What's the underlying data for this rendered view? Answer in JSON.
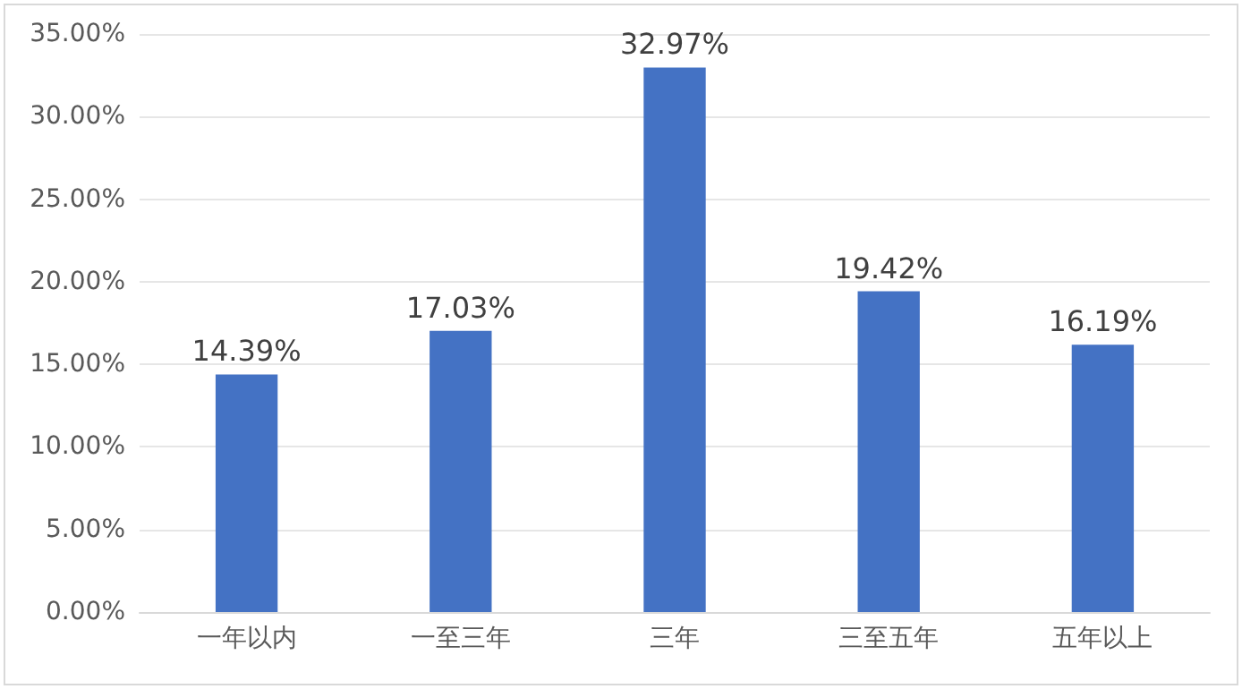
{
  "chart_data": {
    "type": "bar",
    "categories": [
      "一年以内",
      "一至三年",
      "三年",
      "三至五年",
      "五年以上"
    ],
    "values": [
      14.39,
      17.03,
      32.97,
      19.42,
      16.19
    ],
    "value_labels": [
      "14.39%",
      "17.03%",
      "32.97%",
      "19.42%",
      "16.19%"
    ],
    "color": "#4472c4",
    "ylim": [
      0,
      35
    ],
    "yticks": [
      {
        "value": 0,
        "label": "0.00%"
      },
      {
        "value": 5,
        "label": "5.00%"
      },
      {
        "value": 10,
        "label": "10.00%"
      },
      {
        "value": 15,
        "label": "15.00%"
      },
      {
        "value": 20,
        "label": "20.00%"
      },
      {
        "value": 25,
        "label": "25.00%"
      },
      {
        "value": 30,
        "label": "30.00%"
      },
      {
        "value": 35,
        "label": "35.00%"
      }
    ],
    "grid": "y"
  }
}
